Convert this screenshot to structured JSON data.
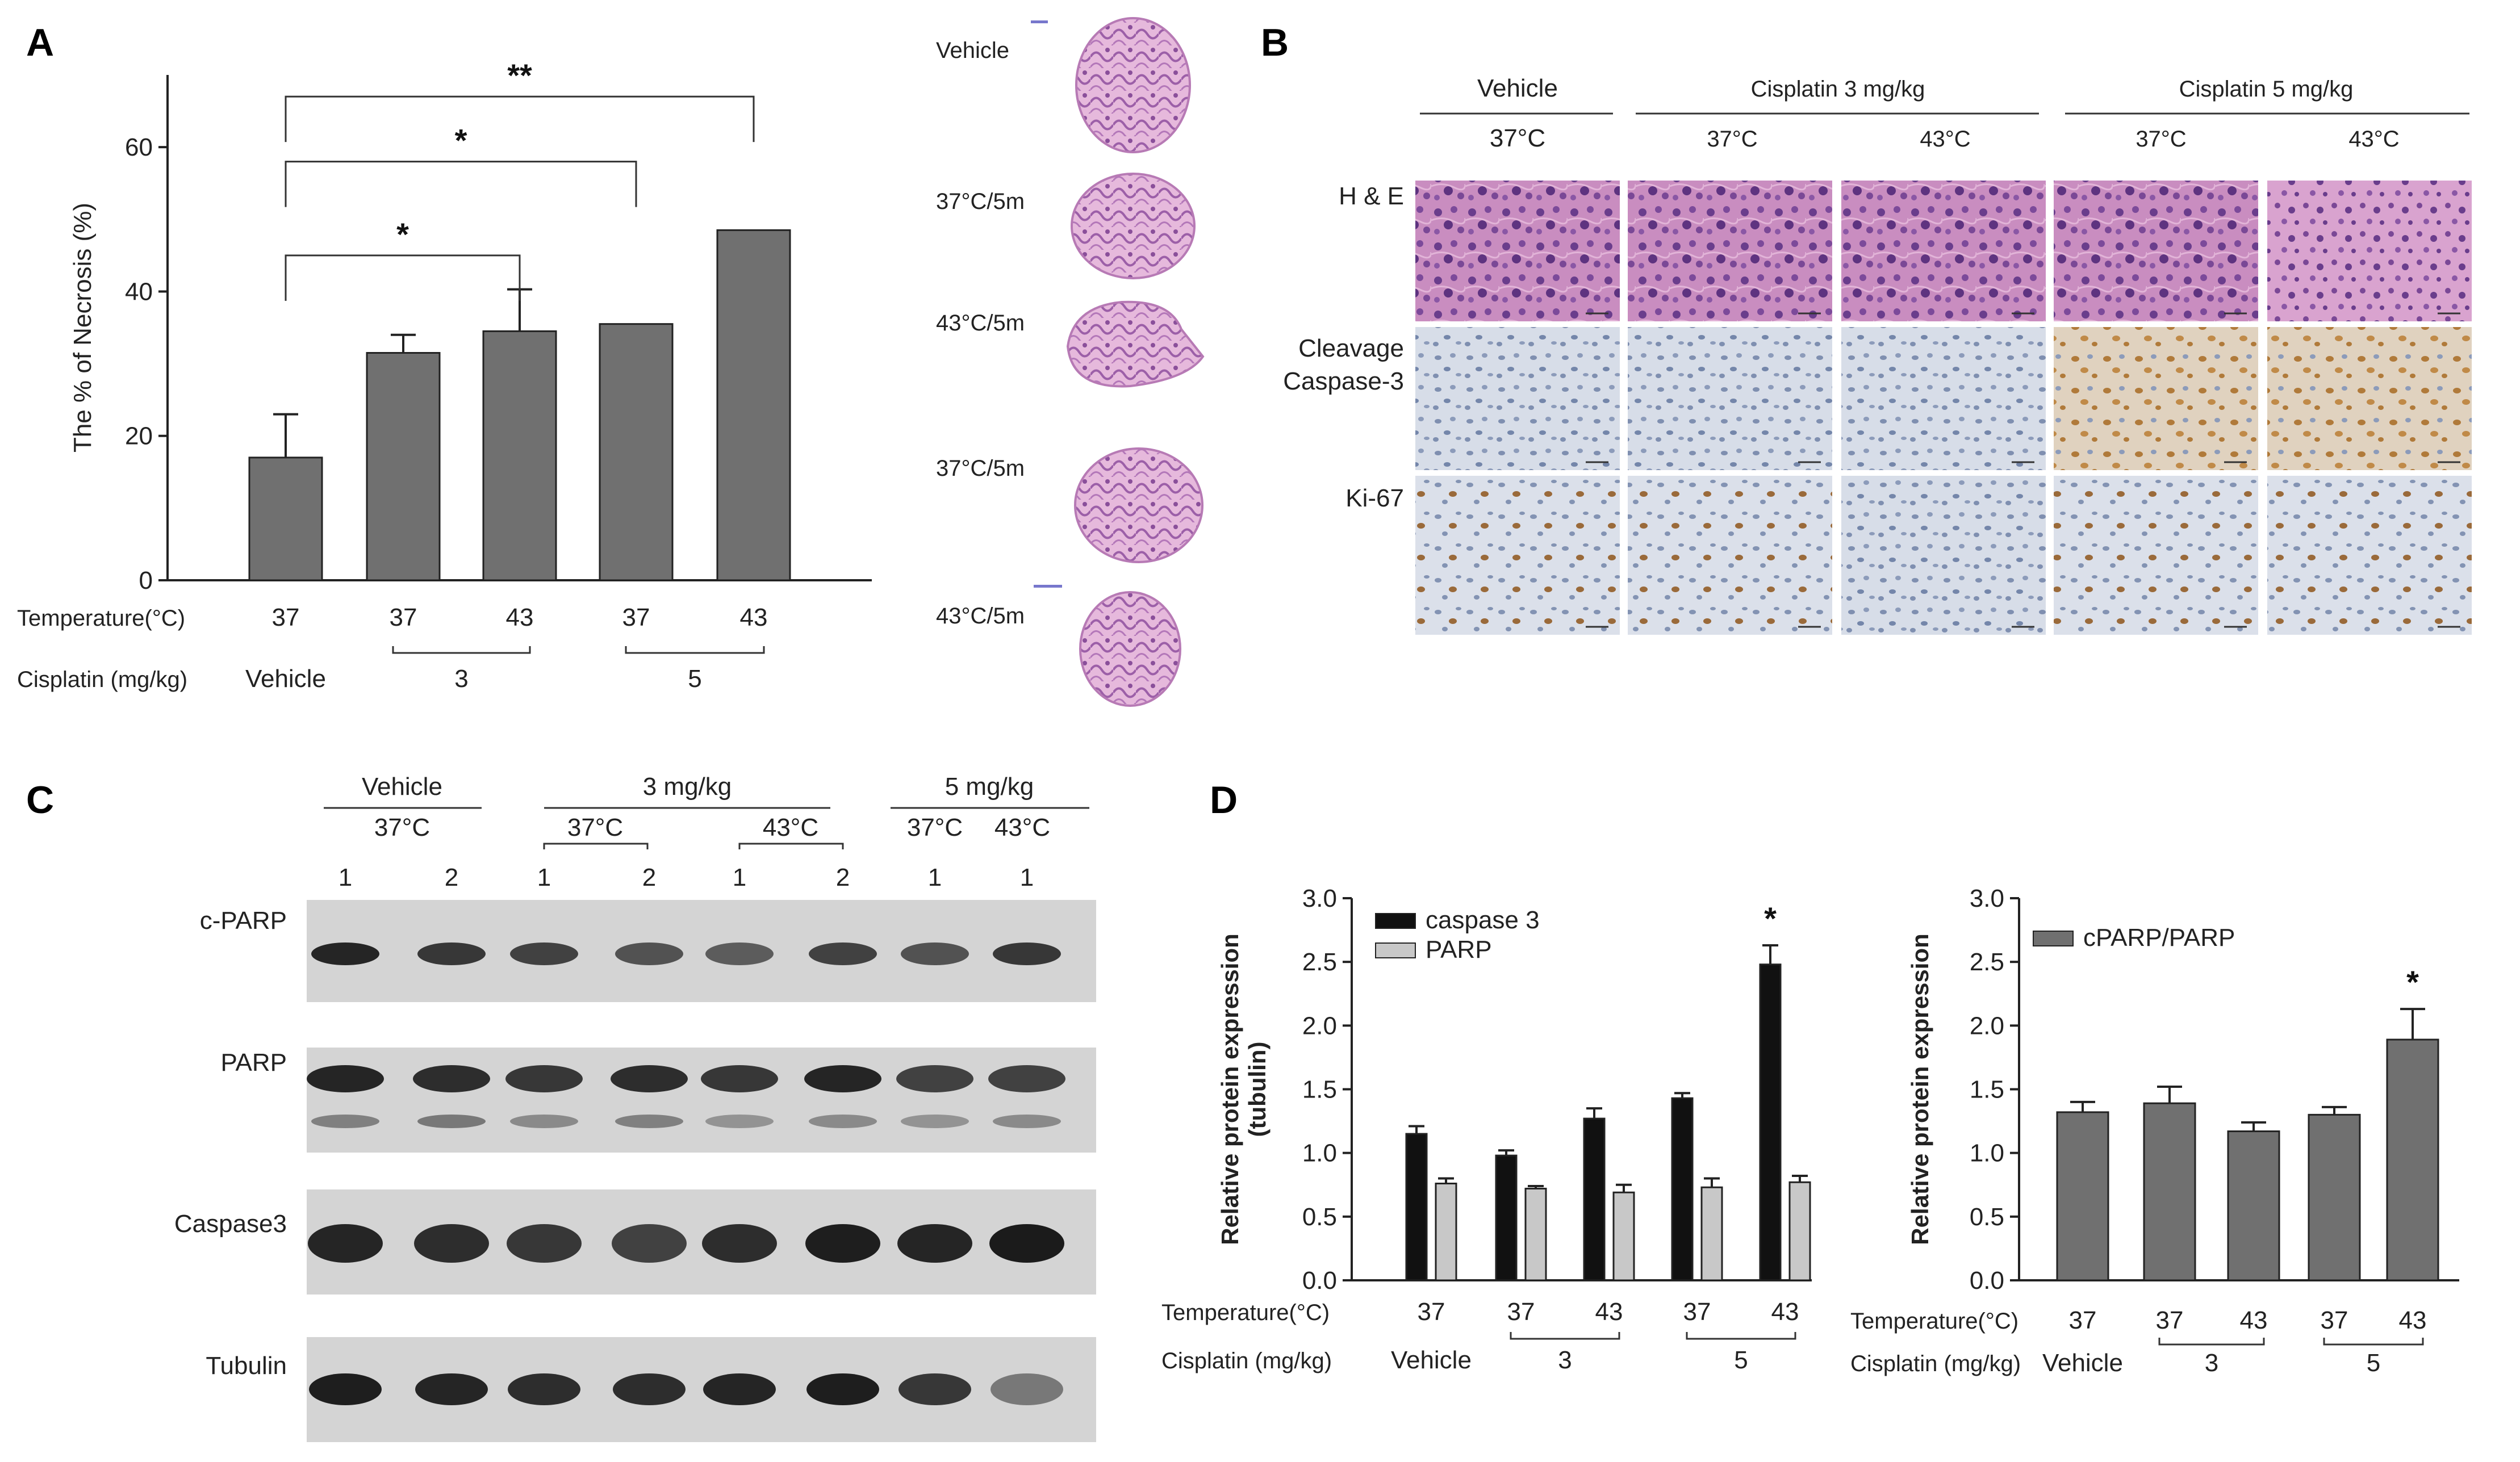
{
  "panels": {
    "A": {
      "letter": "A"
    },
    "B": {
      "letter": "B"
    },
    "C": {
      "letter": "C"
    },
    "D": {
      "letter": "D"
    }
  },
  "colors": {
    "bar_gray": "#707070",
    "bar_black": "#111111",
    "bar_light": "#c8c8c8",
    "he_pink": "#c77fb3",
    "he_purple": "#6b3f8f",
    "ihc_blue": "#b9c4d8",
    "ihc_brown": "#b07a3a",
    "blot_bg": "#d4d4d4",
    "blot_band": "#1b1b1b"
  },
  "chart_data": [
    {
      "id": "A",
      "type": "bar",
      "ylabel": "The % of Necrosis (%)",
      "ylim": [
        0,
        70
      ],
      "yticks": [
        0,
        20,
        40,
        60
      ],
      "categories": [
        "37",
        "37",
        "43",
        "37",
        "43"
      ],
      "row_labels": {
        "temperature": "Temperature(°C)",
        "cisplatin": "Cisplatin (mg/kg)"
      },
      "groups": [
        {
          "label": "Vehicle",
          "span": [
            0,
            0
          ],
          "bracket": false
        },
        {
          "label": "3",
          "span": [
            1,
            2
          ],
          "bracket": true
        },
        {
          "label": "5",
          "span": [
            3,
            4
          ],
          "bracket": true
        }
      ],
      "series": [
        {
          "values": [
            17,
            31.5,
            34.5,
            35.5,
            48.5
          ],
          "errors": [
            6,
            2.5,
            5.8,
            0,
            0
          ]
        }
      ],
      "significance": [
        {
          "from": 0,
          "to": 2,
          "level": 45,
          "label": "*"
        },
        {
          "from": 0,
          "to": 3,
          "level": 58,
          "label": "*"
        },
        {
          "from": 0,
          "to": 4,
          "level": 67,
          "label": "**"
        }
      ],
      "grid": false
    },
    {
      "id": "D1",
      "type": "bar",
      "ylabel": "Relative protein expression (tubulin)",
      "ylim": [
        0,
        3.0
      ],
      "yticks": [
        0.0,
        0.5,
        1.0,
        1.5,
        2.0,
        2.5,
        3.0
      ],
      "categories": [
        "37",
        "37",
        "43",
        "37",
        "43"
      ],
      "row_labels": {
        "temperature": "Temperature(°C)",
        "cisplatin": "Cisplatin (mg/kg)"
      },
      "groups": [
        {
          "label": "Vehicle",
          "span": [
            0,
            0
          ],
          "bracket": false
        },
        {
          "label": "3",
          "span": [
            1,
            2
          ],
          "bracket": true
        },
        {
          "label": "5",
          "span": [
            3,
            4
          ],
          "bracket": true
        }
      ],
      "series": [
        {
          "name": "caspase 3",
          "values": [
            1.15,
            0.98,
            1.27,
            1.43,
            2.48
          ],
          "errors": [
            0.06,
            0.04,
            0.08,
            0.04,
            0.15
          ]
        },
        {
          "name": "PARP",
          "values": [
            0.76,
            0.72,
            0.69,
            0.73,
            0.77
          ],
          "errors": [
            0.04,
            0.02,
            0.06,
            0.07,
            0.05
          ]
        }
      ],
      "significance": [
        {
          "bar": 4,
          "series": 0,
          "label": "*"
        }
      ],
      "legend": "top-left",
      "grid": false
    },
    {
      "id": "D2",
      "type": "bar",
      "ylabel": "Relative protein expression",
      "ylim": [
        0,
        3.0
      ],
      "yticks": [
        0.0,
        0.5,
        1.0,
        1.5,
        2.0,
        2.5,
        3.0
      ],
      "categories": [
        "37",
        "37",
        "43",
        "37",
        "43"
      ],
      "row_labels": {
        "temperature": "Temperature(°C)",
        "cisplatin": "Cisplatin (mg/kg)"
      },
      "groups": [
        {
          "label": "Vehicle",
          "span": [
            0,
            0
          ],
          "bracket": false
        },
        {
          "label": "3",
          "span": [
            1,
            2
          ],
          "bracket": true
        },
        {
          "label": "5",
          "span": [
            3,
            4
          ],
          "bracket": true
        }
      ],
      "series": [
        {
          "name": "cPARP/PARP",
          "values": [
            1.32,
            1.39,
            1.17,
            1.3,
            1.89
          ],
          "errors": [
            0.08,
            0.13,
            0.07,
            0.06,
            0.24
          ]
        }
      ],
      "significance": [
        {
          "bar": 4,
          "series": 0,
          "label": "*"
        }
      ],
      "legend": "top-left",
      "grid": false
    }
  ],
  "sections": {
    "labels": [
      "Vehicle",
      "37°C/5m",
      "43°C/5m",
      "37°C/5m",
      "43°C/5m"
    ]
  },
  "ihc": {
    "headers": {
      "vehicle": "Vehicle",
      "cis3": "Cisplatin 3 mg/kg",
      "cis5": "Cisplatin 5 mg/kg",
      "temps": [
        "37°C",
        "37°C",
        "43°C",
        "37°C",
        "43°C"
      ]
    },
    "rows": [
      "H & E",
      "Cleavage\nCaspase-3",
      "Ki-67"
    ],
    "row_label_lines": {
      "he": "H & E",
      "cc3a": "Cleavage",
      "cc3b": "Caspase-3",
      "ki67": "Ki-67"
    }
  },
  "blot": {
    "groups": {
      "vehicle": "Vehicle",
      "g3": "3 mg/kg",
      "g5": "5 mg/kg"
    },
    "temps": {
      "v": "37°C",
      "g3a": "37°C",
      "g3b": "43°C",
      "g5a": "37°C",
      "g5b": "43°C"
    },
    "lanes": [
      "1",
      "2",
      "1",
      "2",
      "1",
      "2",
      "1",
      "1"
    ],
    "proteins": [
      "c-PARP",
      "PARP",
      "Caspase3",
      "Tubulin"
    ]
  }
}
